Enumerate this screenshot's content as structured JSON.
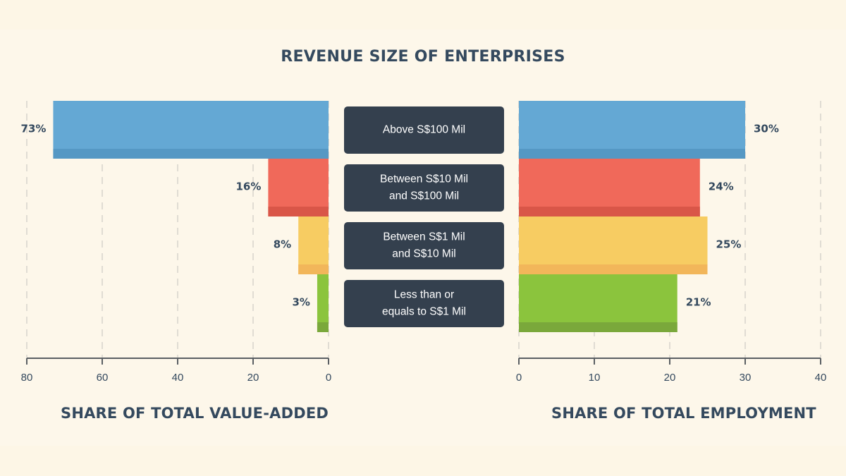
{
  "title": "REVENUE SIZE OF ENTERPRISES",
  "chart_data": [
    {
      "type": "bar",
      "orientation": "horizontal",
      "direction": "leftward",
      "title": "SHARE OF TOTAL VALUE-ADDED",
      "categories": [
        "Above S$100 Mil",
        "Between S$10 Mil and S$100 Mil",
        "Between S$1 Mil and S$10 Mil",
        "Less than or equals to S$1 Mil"
      ],
      "values": [
        73,
        16,
        8,
        3
      ],
      "value_labels": [
        "73%",
        "16%",
        "8%",
        "3%"
      ],
      "xlim": [
        0,
        80
      ],
      "ticks": [
        80,
        60,
        40,
        20,
        0
      ],
      "grid": true
    },
    {
      "type": "bar",
      "orientation": "horizontal",
      "direction": "rightward",
      "title": "SHARE OF TOTAL EMPLOYMENT",
      "categories": [
        "Above S$100 Mil",
        "Between S$10 Mil and S$100 Mil",
        "Between S$1 Mil and S$10 Mil",
        "Less than or equals to S$1 Mil"
      ],
      "values": [
        30,
        24,
        25,
        21
      ],
      "value_labels": [
        "30%",
        "24%",
        "25%",
        "21%"
      ],
      "xlim": [
        0,
        40
      ],
      "ticks": [
        0,
        10,
        20,
        30,
        40
      ],
      "grid": true
    }
  ],
  "category_labels": [
    [
      "Above S$100 Mil"
    ],
    [
      "Between S$10 Mil",
      "and S$100 Mil"
    ],
    [
      "Between S$1 Mil",
      "and S$10 Mil"
    ],
    [
      "Less than or",
      "equals to S$1 Mil"
    ]
  ],
  "colors": {
    "bars": [
      "#64a8d4",
      "#f0695a",
      "#f7cc62",
      "#8bc43d"
    ],
    "bars_dark": [
      "#5598c4",
      "#d95648",
      "#f2b65a",
      "#7aa83b"
    ],
    "label_box": "#34404e",
    "text": "#34495e",
    "grid": "#d6d3cb",
    "axis": "#5a5f63"
  }
}
